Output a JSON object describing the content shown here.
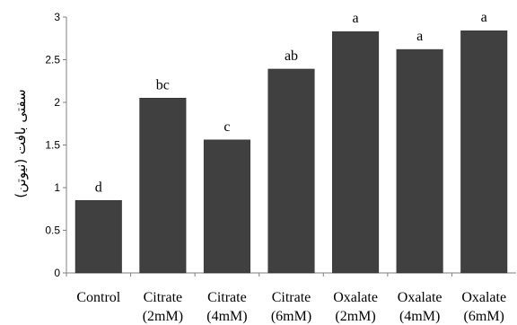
{
  "chart_data": {
    "type": "bar",
    "title": "",
    "xlabel": "",
    "ylabel": "سفتی بافت (نیوتن)",
    "ylim": [
      0,
      3
    ],
    "yticks": [
      "0",
      "0.5",
      "1",
      "1.5",
      "2",
      "2.5",
      "3"
    ],
    "grid": false,
    "legend": "none",
    "bar_color": "#404040",
    "categories": [
      {
        "line1": "Control",
        "line2": ""
      },
      {
        "line1": "Citrate",
        "line2": "(2mM)"
      },
      {
        "line1": "Citrate",
        "line2": "(4mM)"
      },
      {
        "line1": "Citrate",
        "line2": "(6mM)"
      },
      {
        "line1": "Oxalate",
        "line2": "(2mM)"
      },
      {
        "line1": "Oxalate",
        "line2": "(4mM)"
      },
      {
        "line1": "Oxalate",
        "line2": "(6mM)"
      }
    ],
    "values": [
      0.85,
      2.05,
      1.56,
      2.39,
      2.83,
      2.62,
      2.84
    ],
    "data_labels": [
      "d",
      "bc",
      "c",
      "ab",
      "a",
      "a",
      "a"
    ]
  }
}
